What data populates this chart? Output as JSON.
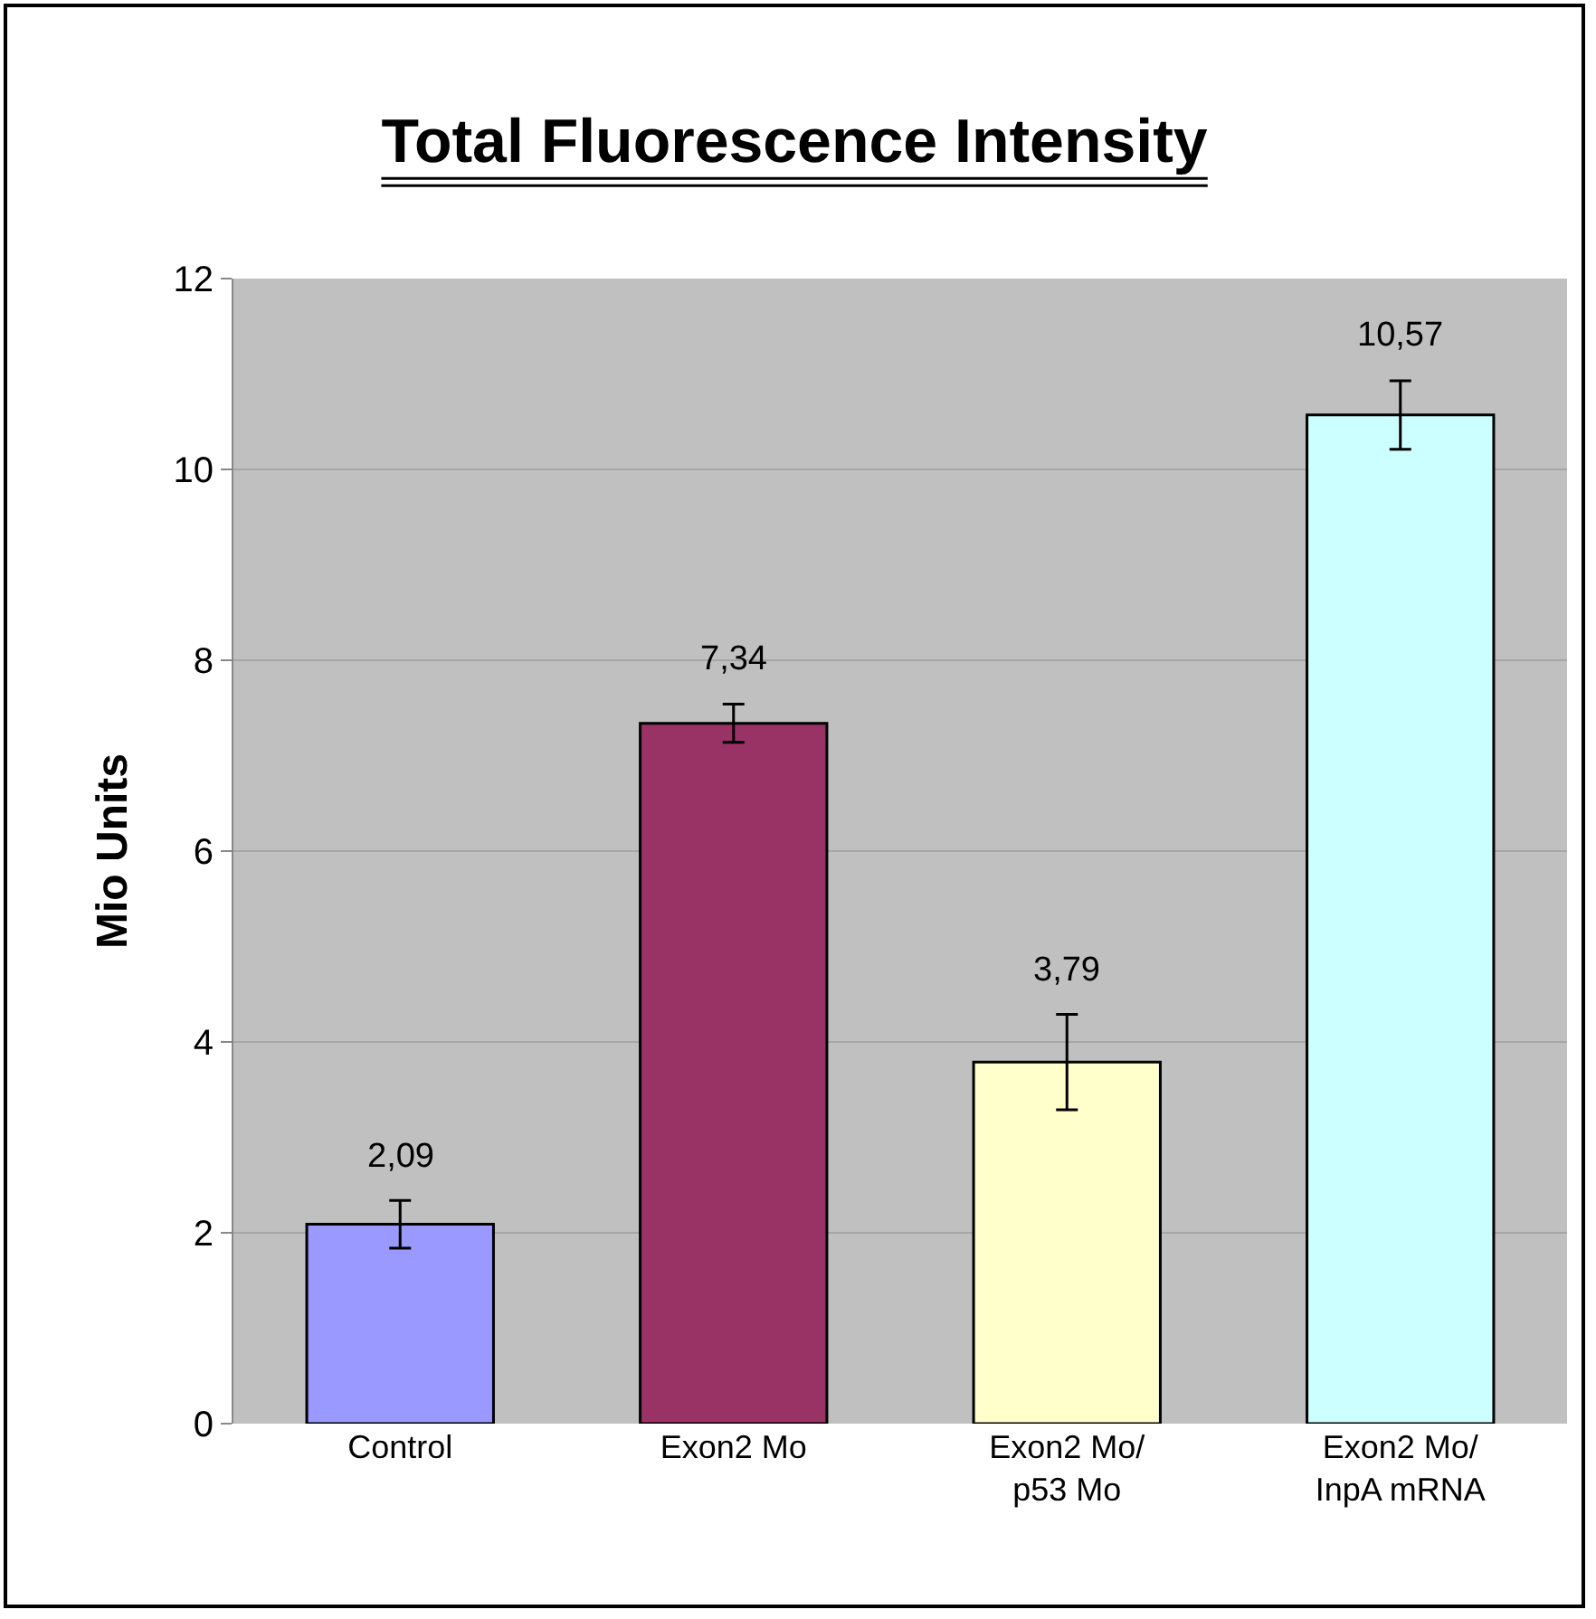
{
  "chart_data": {
    "type": "bar",
    "title": "Total Fluorescence Intensity",
    "ylabel": "Mio Units",
    "categories": [
      "Control",
      "Exon2 Mo",
      "Exon2 Mo/p53 Mo",
      "Exon2 Mo/InpA mRNA"
    ],
    "values": [
      2.09,
      7.34,
      3.79,
      10.57
    ],
    "colors": [
      "#9999ff",
      "#993366",
      "#ffffcc",
      "#ccffff"
    ],
    "errors": [
      0.25,
      0.2,
      0.5,
      0.36
    ],
    "value_labels": [
      "2,09",
      "7,34",
      "3,79",
      "10,57"
    ],
    "ylim": [
      0,
      12
    ],
    "yticks": [
      0,
      2,
      4,
      6,
      8,
      10,
      12
    ],
    "grid": "y"
  }
}
